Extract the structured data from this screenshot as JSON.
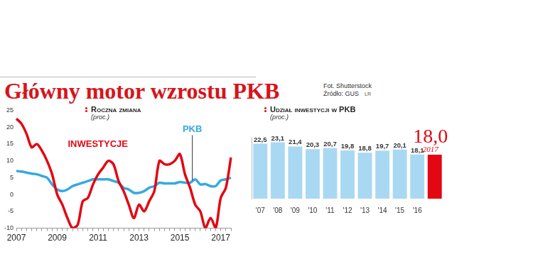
{
  "title": "Główny motor wzrostu PKB",
  "photo_credit": "Fot. Shutterstock",
  "source": "Źródło: GUS",
  "author": "LR",
  "chart_data": [
    {
      "type": "line",
      "title": "Roczna zmiana",
      "subtitle": "(proc.)",
      "categories": [
        "2007",
        null,
        null,
        null,
        null,
        null,
        null,
        null,
        "2009",
        null,
        null,
        null,
        null,
        null,
        null,
        null,
        "2011",
        null,
        null,
        null,
        null,
        null,
        null,
        null,
        "2013",
        null,
        null,
        null,
        null,
        null,
        null,
        null,
        "2015",
        null,
        null,
        null,
        null,
        null,
        null,
        null,
        "2017",
        null,
        null
      ],
      "series": [
        {
          "name": "INWESTYCJE",
          "color": "#e30613",
          "values": [
            22.5,
            21,
            18,
            14,
            15,
            13,
            10,
            6,
            0,
            -3,
            -7,
            -10,
            -9,
            -2,
            -1,
            3,
            6,
            8,
            10,
            9,
            4,
            1,
            -3,
            -7,
            -3,
            -5,
            -2,
            1,
            10,
            9,
            9,
            10,
            12,
            6,
            2,
            -3,
            -5,
            -10,
            -7,
            -10,
            -1,
            2,
            11
          ]
        },
        {
          "name": "PKB",
          "color": "#36a9e1",
          "values": [
            7,
            6.8,
            6.5,
            6.2,
            6,
            5.5,
            5,
            3,
            1.5,
            1,
            1.5,
            2.5,
            3,
            3.5,
            4,
            4.5,
            4.5,
            4.5,
            4.5,
            4,
            3.5,
            2,
            1.5,
            0.5,
            0.5,
            1,
            2,
            2.5,
            3.5,
            3.3,
            3.3,
            3.3,
            3.7,
            3.5,
            3.5,
            4.5,
            3,
            3.1,
            2.5,
            2.5,
            4.2,
            4.5,
            5
          ]
        }
      ],
      "ylim": [
        -10,
        25
      ],
      "yticks": [
        -10,
        -5,
        0,
        5,
        10,
        15,
        20,
        25
      ],
      "grid": false,
      "legend": false
    },
    {
      "type": "bar",
      "title": "Udział inwestycji w PKB",
      "subtitle": "(proc.)",
      "categories": [
        "'07",
        "'08",
        "'09",
        "'10",
        "'11",
        "'12",
        "'13",
        "'14",
        "'15",
        "'16",
        "2017"
      ],
      "values": [
        22.5,
        23.1,
        21.4,
        20.3,
        20.7,
        19.8,
        18.8,
        19.7,
        20.1,
        18.1,
        18.0
      ],
      "value_labels": [
        "22,5",
        "23,1",
        "21,4",
        "20,3",
        "20,7",
        "19,8",
        "18,8",
        "19,7",
        "20,1",
        "18,1",
        "18,0"
      ],
      "colors": [
        "#a9d8f3",
        "#a9d8f3",
        "#a9d8f3",
        "#a9d8f3",
        "#a9d8f3",
        "#a9d8f3",
        "#a9d8f3",
        "#a9d8f3",
        "#a9d8f3",
        "#a9d8f3",
        "#e30613"
      ],
      "ylim": [
        0,
        25
      ],
      "tick_labels": "x",
      "data_labels": true,
      "grid": false,
      "legend": false
    }
  ]
}
